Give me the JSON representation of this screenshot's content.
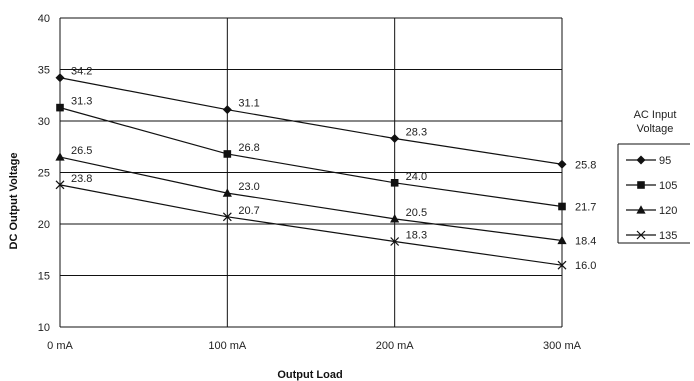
{
  "chart_data": {
    "type": "line",
    "title": "",
    "xlabel": "Output Load",
    "ylabel": "DC Output Voltage",
    "categories": [
      "0 mA",
      "100 mA",
      "200 mA",
      "300 mA"
    ],
    "ylim": [
      10,
      40
    ],
    "yticks": [
      10,
      15,
      20,
      25,
      30,
      35,
      40
    ],
    "grid": true,
    "legend": {
      "title_lines": [
        "AC Input",
        "Voltage"
      ],
      "placement": "right"
    },
    "series": [
      {
        "name": "95",
        "marker": "diamond",
        "values": [
          34.2,
          31.1,
          28.3,
          25.8
        ],
        "labels": [
          "34.2",
          "31.1",
          "28.3",
          "25.8"
        ]
      },
      {
        "name": "105",
        "marker": "square",
        "values": [
          31.3,
          26.8,
          24.0,
          21.7
        ],
        "labels": [
          "31.3",
          "26.8",
          "24.0",
          "21.7"
        ]
      },
      {
        "name": "120",
        "marker": "triangle",
        "values": [
          26.5,
          23.0,
          20.5,
          18.4
        ],
        "labels": [
          "26.5",
          "23.0",
          "20.5",
          "18.4"
        ]
      },
      {
        "name": "135",
        "marker": "x",
        "values": [
          23.8,
          20.7,
          18.3,
          16.0
        ],
        "labels": [
          "23.8",
          "20.7",
          "18.3",
          "16.0"
        ]
      }
    ],
    "colors": {
      "line": "#111111",
      "grid": "#111111",
      "text": "#222222"
    }
  }
}
